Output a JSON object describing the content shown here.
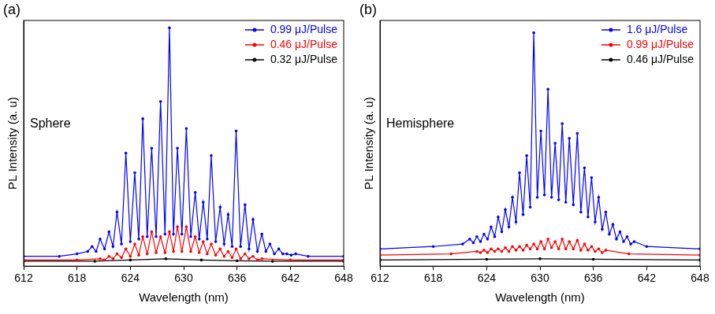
{
  "chart_data": [
    {
      "type": "line",
      "title": "(a)",
      "annotations": [
        "Sphere"
      ],
      "x_label": "Wavelength (nm)",
      "y_label": "PL Intensity (a. u)",
      "xlim": [
        612,
        648
      ],
      "xticks": [
        612,
        618,
        624,
        630,
        636,
        642,
        648
      ],
      "ylim": [
        0,
        100
      ],
      "tick_labels": "x",
      "grid": false,
      "legend": "upper right",
      "series": [
        {
          "name": "0.99 μJ/Pulse",
          "color": "#0000ff",
          "marker": "circle",
          "x": [
            612,
            616,
            618,
            619.2,
            619.7,
            620.15,
            620.6,
            621.1,
            621.6,
            622.05,
            622.5,
            623.0,
            623.5,
            624.0,
            624.5,
            624.95,
            625.4,
            625.9,
            626.4,
            626.9,
            627.4,
            627.9,
            628.4,
            628.85,
            629.3,
            629.8,
            630.3,
            630.8,
            631.3,
            631.75,
            632.2,
            632.65,
            633.1,
            633.6,
            634.1,
            634.55,
            635.0,
            635.45,
            635.9,
            636.4,
            636.9,
            637.35,
            637.8,
            638.3,
            638.8,
            639.25,
            639.7,
            640.2,
            640.7,
            641.15,
            641.6,
            642.1,
            642.6,
            644,
            648
          ],
          "values": [
            4,
            4,
            5,
            6,
            8,
            6,
            11,
            7,
            14,
            8,
            22,
            9,
            46,
            10,
            38,
            11,
            60,
            12,
            48,
            12,
            67,
            13,
            97,
            13,
            48,
            13,
            56,
            12,
            30,
            11,
            26,
            11,
            45,
            10,
            24,
            9,
            21,
            8,
            55,
            8,
            25,
            7,
            19,
            6,
            13,
            6,
            9,
            5,
            7,
            5,
            5,
            4.5,
            5,
            4,
            4
          ]
        },
        {
          "name": "0.46 μJ/Pulse",
          "color": "#ff0000",
          "marker": "circle",
          "x": [
            612,
            618,
            620.6,
            621.1,
            621.6,
            622.05,
            622.5,
            623.0,
            623.5,
            624.0,
            624.5,
            624.95,
            625.4,
            625.9,
            626.4,
            626.9,
            627.4,
            627.9,
            628.4,
            628.85,
            629.3,
            629.8,
            630.3,
            630.8,
            631.3,
            631.75,
            632.2,
            632.65,
            633.1,
            633.6,
            634.1,
            634.55,
            635.0,
            635.45,
            635.9,
            636.4,
            636.9,
            637.35,
            637.8,
            638.3,
            638.8,
            642,
            648
          ],
          "values": [
            2.5,
            2.5,
            3,
            2.5,
            4,
            3,
            5,
            3.5,
            7,
            4,
            9,
            4.5,
            12,
            5,
            14,
            5.5,
            12,
            5.5,
            14,
            6,
            16,
            6,
            16,
            6,
            12,
            5.5,
            10,
            5,
            9,
            4.5,
            7,
            4,
            6,
            3.5,
            7,
            3,
            5,
            3,
            4,
            2.5,
            3,
            2.5,
            2.5
          ]
        },
        {
          "name": "0.32 μJ/Pulse",
          "color": "#000000",
          "marker": "circle",
          "x": [
            612,
            620,
            624,
            628,
            632,
            636,
            640,
            648
          ],
          "values": [
            2,
            2,
            2.5,
            3,
            2.5,
            2.2,
            2,
            2
          ]
        }
      ]
    },
    {
      "type": "line",
      "title": "(b)",
      "annotations": [
        "Hemisphere"
      ],
      "x_label": "Wavelength (nm)",
      "y_label": "PL Intensity (a. u)",
      "xlim": [
        612,
        648
      ],
      "xticks": [
        612,
        618,
        624,
        630,
        636,
        642,
        648
      ],
      "ylim": [
        0,
        100
      ],
      "tick_labels": "x",
      "grid": false,
      "legend": "upper right",
      "series": [
        {
          "name": "1.6 μJ/Pulse",
          "color": "#0000ff",
          "marker": "circle",
          "x": [
            612,
            618,
            621.3,
            622.1,
            622.5,
            622.9,
            623.3,
            623.7,
            624.1,
            624.5,
            624.9,
            625.3,
            625.7,
            626.1,
            626.5,
            626.9,
            627.3,
            627.7,
            628.1,
            628.5,
            628.9,
            629.3,
            629.7,
            630.1,
            630.5,
            630.9,
            631.3,
            631.7,
            632.1,
            632.5,
            632.9,
            633.3,
            633.75,
            634.2,
            634.6,
            635.0,
            635.4,
            635.8,
            636.2,
            636.6,
            637.0,
            637.4,
            637.8,
            638.2,
            638.6,
            639.0,
            639.4,
            639.8,
            640.2,
            640.6,
            642,
            648
          ],
          "values": [
            7,
            8,
            9,
            11,
            9.5,
            12,
            10,
            13,
            11,
            16,
            12,
            20,
            14,
            23,
            16,
            28,
            18,
            38,
            21,
            45,
            24,
            95,
            28,
            55,
            29,
            72,
            28,
            50,
            27,
            58,
            26,
            52,
            25,
            54,
            22,
            40,
            20,
            36,
            18,
            28,
            15,
            22,
            13,
            17,
            11,
            14,
            10,
            12,
            9,
            10,
            8,
            7
          ]
        },
        {
          "name": "0.99 μJ/Pulse",
          "color": "#ff0000",
          "marker": "circle",
          "x": [
            612,
            620,
            622.9,
            623.3,
            623.7,
            624.1,
            624.5,
            624.9,
            625.3,
            625.7,
            626.1,
            626.5,
            626.9,
            627.3,
            627.7,
            628.1,
            628.5,
            628.9,
            629.3,
            629.7,
            630.1,
            630.5,
            630.9,
            631.3,
            631.7,
            632.1,
            632.5,
            632.9,
            633.3,
            633.75,
            634.2,
            634.6,
            635.0,
            635.4,
            635.8,
            636.2,
            636.6,
            637.0,
            637.4,
            640,
            648
          ],
          "values": [
            4.5,
            5,
            6,
            5.5,
            6.5,
            5.5,
            7,
            6,
            7,
            6,
            7.5,
            6,
            8,
            6.5,
            8,
            6.5,
            8.5,
            7,
            9,
            7,
            10,
            7,
            11,
            7.5,
            10,
            7,
            11,
            7,
            10,
            7,
            10.5,
            6.5,
            9,
            6.5,
            8,
            6,
            7,
            5.5,
            6.5,
            5,
            4.5
          ]
        },
        {
          "name": "0.46 μJ/Pulse",
          "color": "#000000",
          "marker": "circle",
          "x": [
            612,
            624,
            630,
            636,
            648
          ],
          "values": [
            2.5,
            2.8,
            3,
            2.8,
            2.5
          ]
        }
      ]
    }
  ]
}
